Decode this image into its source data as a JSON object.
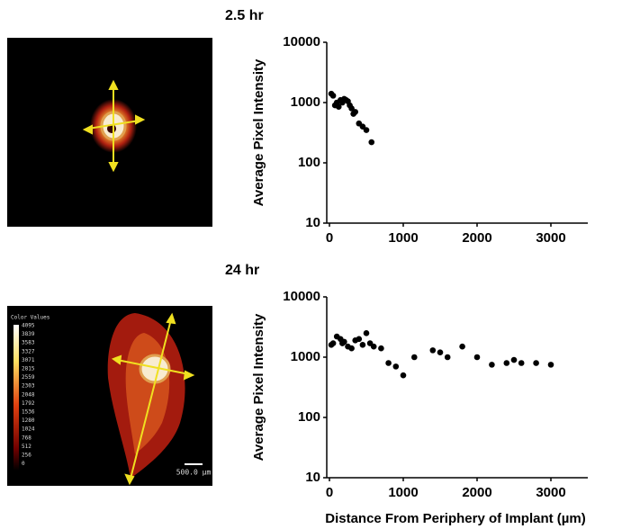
{
  "chart_data": [
    {
      "type": "scatter",
      "title": "2.5 hr",
      "y_label": "Average Pixel Intensity",
      "color": "#000000",
      "log_y": true,
      "x": [
        25,
        50,
        75,
        100,
        125,
        150,
        175,
        200,
        225,
        250,
        275,
        300,
        325,
        350,
        400,
        450,
        500,
        570
      ],
      "series": [
        {
          "values": [
            1400,
            1300,
            900,
            1000,
            850,
            1100,
            1000,
            1150,
            1100,
            1050,
            900,
            800,
            650,
            700,
            450,
            400,
            350,
            220
          ]
        }
      ],
      "xlim": [
        0,
        3500
      ],
      "ylim": [
        10,
        10000
      ],
      "xticks": [
        0,
        1000,
        2000,
        3000
      ],
      "yticks": [
        10,
        100,
        1000,
        10000
      ]
    },
    {
      "type": "scatter",
      "title": "24 hr",
      "y_label": "Average Pixel Intensity",
      "x_label": "Distance From Periphery of Implant (µm)",
      "color": "#000000",
      "log_y": true,
      "x": [
        25,
        50,
        100,
        150,
        175,
        200,
        250,
        300,
        350,
        400,
        450,
        500,
        550,
        600,
        700,
        800,
        900,
        1000,
        1150,
        1400,
        1500,
        1600,
        1800,
        2000,
        2200,
        2400,
        2500,
        2600,
        2800,
        3000
      ],
      "series": [
        {
          "values": [
            1600,
            1700,
            2200,
            2000,
            1700,
            1800,
            1500,
            1400,
            1900,
            2000,
            1600,
            2500,
            1700,
            1500,
            1400,
            800,
            700,
            500,
            1000,
            1300,
            1200,
            1000,
            1500,
            1000,
            750,
            800,
            900,
            800,
            800,
            750
          ]
        }
      ],
      "xlim": [
        0,
        3500
      ],
      "ylim": [
        10,
        10000
      ],
      "xticks": [
        0,
        1000,
        2000,
        3000
      ],
      "yticks": [
        10,
        100,
        1000,
        10000
      ]
    }
  ],
  "image_legend": {
    "title": "Color Values",
    "values": [
      "4095",
      "3839",
      "3583",
      "3327",
      "3071",
      "2815",
      "2559",
      "2303",
      "2048",
      "1792",
      "1536",
      "1280",
      "1024",
      "768",
      "512",
      "256",
      "0"
    ],
    "scale_label": "500.0 µm"
  }
}
